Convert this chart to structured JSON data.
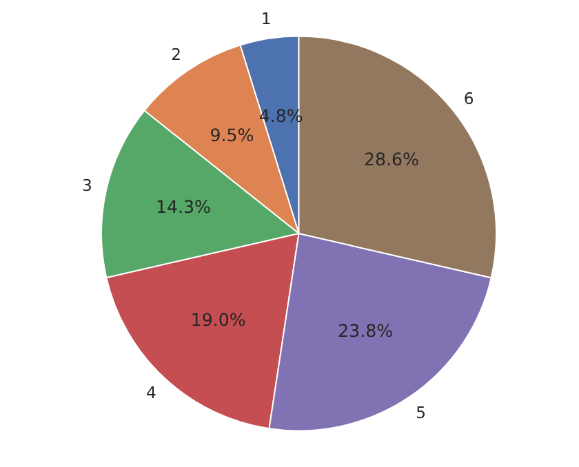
{
  "chart_data": {
    "type": "pie",
    "categories": [
      "1",
      "2",
      "3",
      "4",
      "5",
      "6"
    ],
    "values": [
      4.8,
      9.5,
      14.3,
      19.0,
      23.8,
      28.6
    ],
    "value_labels": [
      "4.8%",
      "9.5%",
      "14.3%",
      "19.0%",
      "23.8%",
      "28.6%"
    ],
    "colors": [
      "#4c72b0",
      "#dd8452",
      "#55a868",
      "#c44e52",
      "#8172b3",
      "#937860"
    ]
  }
}
